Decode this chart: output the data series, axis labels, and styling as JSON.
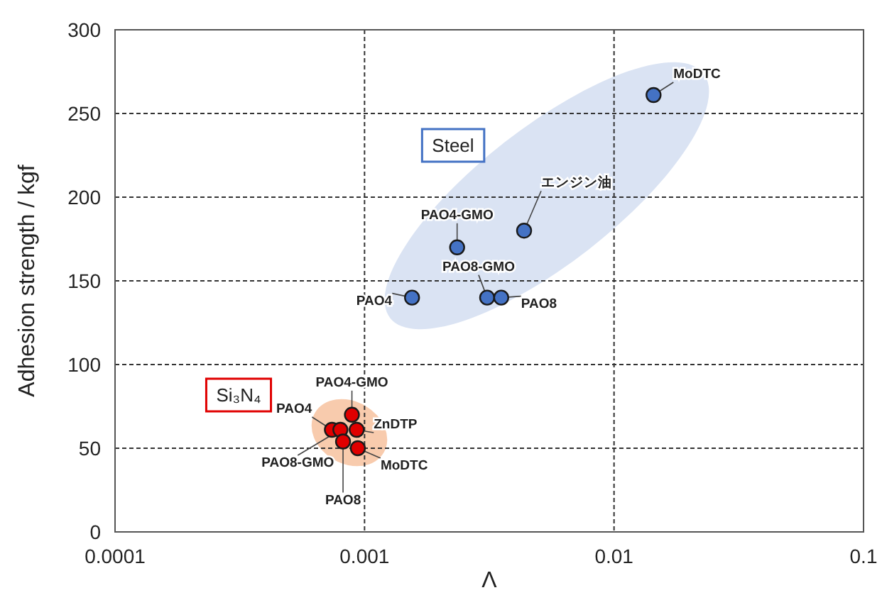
{
  "chart_data": {
    "type": "scatter",
    "xlabel": "Λ",
    "ylabel": "Adhesion strength / kgf",
    "log": "x",
    "xlim": [
      0.0001,
      0.1
    ],
    "xticks": [
      0.0001,
      0.001,
      0.01,
      0.1
    ],
    "ylim": [
      0,
      300
    ],
    "yticks": [
      0,
      50,
      100,
      150,
      200,
      250,
      300
    ],
    "grid": true,
    "legend": false,
    "marker": "circle",
    "series": [
      {
        "name": "Steel",
        "color": "#4472c4",
        "x": [
          0.0144,
          0.00436,
          0.00235,
          0.0031,
          0.00353,
          0.00155
        ],
        "values": [
          261,
          180,
          170,
          140,
          140,
          140
        ]
      },
      {
        "name": "Si₃N₄",
        "color": "#e00000",
        "x": [
          0.00089,
          0.00074,
          0.0008,
          0.00082,
          0.00093,
          0.00094
        ],
        "values": [
          70,
          61,
          61,
          54,
          61,
          50
        ]
      }
    ],
    "annotations": [
      {
        "text": "MoDTC",
        "x": 0.0144,
        "y": 261
      },
      {
        "text": "エンジン油",
        "x": 0.00436,
        "y": 180
      },
      {
        "text": "PAO4-GMO",
        "x": 0.00235,
        "y": 170
      },
      {
        "text": "PAO8-GMO",
        "x": 0.0031,
        "y": 140
      },
      {
        "text": "PAO8",
        "x": 0.00353,
        "y": 140
      },
      {
        "text": "PAO4",
        "x": 0.00155,
        "y": 140
      },
      {
        "text": "PAO4-GMO",
        "x": 0.00089,
        "y": 70
      },
      {
        "text": "PAO4",
        "x": 0.00074,
        "y": 61
      },
      {
        "text": "PAO8-GMO",
        "x": 0.0008,
        "y": 61
      },
      {
        "text": "PAO8",
        "x": 0.00082,
        "y": 54
      },
      {
        "text": "ZnDTP",
        "x": 0.00093,
        "y": 61
      },
      {
        "text": "MoDTC",
        "x": 0.00094,
        "y": 50
      }
    ]
  }
}
